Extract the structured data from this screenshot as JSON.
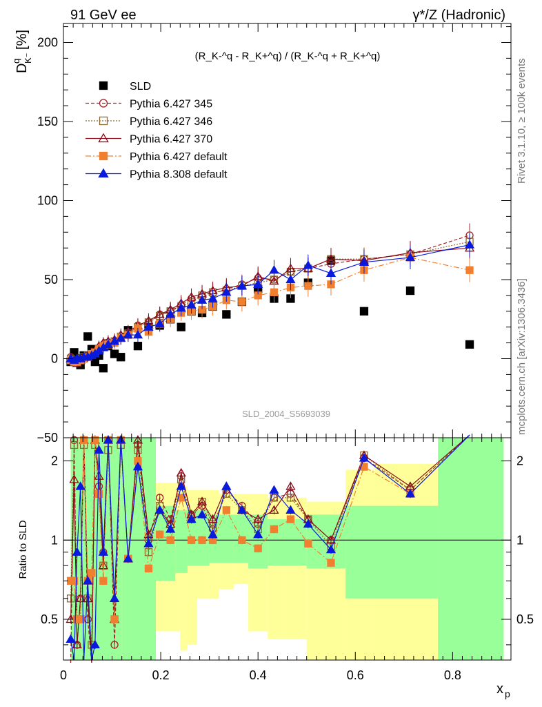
{
  "header": {
    "left": "91 GeV ee",
    "right": "γ*/Z (Hadronic)"
  },
  "side_labels": {
    "rivet": "Rivet 3.1.10, ≥ 100k events",
    "mcplots": "mcplots.cern.ch [arXiv:1306.3436]"
  },
  "chart_data": {
    "type": "scatter",
    "title": "(R^q_{K-} - R^q_{K+}) / (R^q_{K-} + R^q_{K+})",
    "formula": "(R_K-^q - R_K+^q) / (R_K-^q + R_K+^q)",
    "ylabel": "D^q_{K-} [%]",
    "ylabel_main": "D",
    "ylabel_sup": "q",
    "ylabel_sub": "K⁻",
    "ylabel_unit": "[%]",
    "xlabel": "x_p",
    "xlabel_main": "x",
    "xlabel_sub": "p",
    "ratio_ylabel": "Ratio to SLD",
    "watermark": "SLD_2004_S5693039",
    "xlim": [
      0,
      0.92
    ],
    "ylim": [
      -50,
      212
    ],
    "ratio_ylim": [
      0.35,
      2.45
    ],
    "xticks": [
      "0",
      "0.2",
      "0.4",
      "0.6",
      "0.8"
    ],
    "yticks": [
      "−50",
      "0",
      "50",
      "100",
      "150",
      "200"
    ],
    "ratio_yticks": [
      "0.5",
      "1",
      "2"
    ],
    "legend_position": "top-left",
    "x": [
      0.015,
      0.022,
      0.028,
      0.035,
      0.042,
      0.05,
      0.058,
      0.065,
      0.073,
      0.082,
      0.092,
      0.105,
      0.118,
      0.133,
      0.153,
      0.175,
      0.198,
      0.22,
      0.242,
      0.263,
      0.285,
      0.307,
      0.335,
      0.367,
      0.4,
      0.433,
      0.467,
      0.503,
      0.55,
      0.618,
      0.713,
      0.835
    ],
    "series": [
      {
        "name": "SLD",
        "marker": "square",
        "color": "#000000",
        "values": [
          -2,
          4,
          0,
          -4,
          2,
          14,
          6,
          -2,
          2,
          -6,
          8,
          3,
          1,
          18,
          8,
          20,
          21,
          25,
          20,
          30,
          29,
          33,
          28,
          36,
          44,
          38,
          38,
          48,
          62,
          30,
          43,
          9
        ]
      },
      {
        "name": "Pythia 6.427 345",
        "marker": "open-circle",
        "color": "#a0202a",
        "dash": "5,3",
        "values": [
          1,
          -2,
          -3,
          -1,
          0,
          1,
          3,
          4,
          7,
          9,
          10,
          11,
          13,
          16,
          21,
          23,
          28,
          30,
          34,
          38,
          39,
          41,
          44,
          47,
          51,
          50,
          55,
          57,
          60,
          63,
          66,
          78
        ]
      },
      {
        "name": "Pythia 6.427 346",
        "marker": "open-square",
        "color": "#8b6a2b",
        "dash": "2,2",
        "values": [
          0,
          -1,
          -2,
          0,
          1,
          2,
          3,
          4,
          6,
          8,
          10,
          11,
          14,
          16,
          20,
          23,
          27,
          30,
          33,
          36,
          40,
          42,
          43,
          46,
          48,
          50,
          55,
          57,
          63,
          63,
          66,
          74
        ]
      },
      {
        "name": "Pythia 6.427 370",
        "marker": "open-triangle",
        "color": "#8b0a1a",
        "dash": "",
        "values": [
          0,
          -2,
          -3,
          -1,
          1,
          2,
          4,
          5,
          8,
          10,
          11,
          12,
          15,
          17,
          21,
          24,
          28,
          31,
          35,
          39,
          41,
          43,
          45,
          46,
          52,
          49,
          57,
          57,
          63,
          62,
          67,
          70
        ]
      },
      {
        "name": "Pythia 6.427 default",
        "marker": "filled-square",
        "color": "#f08030",
        "dash": "8,3,2,3",
        "values": [
          -1,
          -2,
          -2,
          -1,
          0,
          1,
          3,
          4,
          6,
          8,
          9,
          10,
          13,
          15,
          19,
          17,
          22,
          25,
          29,
          30,
          31,
          33,
          37,
          36,
          40,
          42,
          45,
          46,
          47,
          56,
          64,
          56
        ]
      },
      {
        "name": "Pythia 8.308 default",
        "marker": "filled-triangle",
        "color": "#0a1adc",
        "dash": "",
        "values": [
          0,
          -1,
          0,
          0,
          1,
          1,
          2,
          3,
          5,
          7,
          9,
          11,
          13,
          15,
          15,
          20,
          22,
          28,
          32,
          34,
          37,
          38,
          42,
          46,
          47,
          56,
          50,
          59,
          54,
          61,
          64,
          72
        ]
      }
    ],
    "ratio": {
      "x": [
        0.015,
        0.022,
        0.028,
        0.035,
        0.042,
        0.05,
        0.058,
        0.065,
        0.073,
        0.082,
        0.092,
        0.105,
        0.118,
        0.133,
        0.153,
        0.175,
        0.198,
        0.22,
        0.242,
        0.263,
        0.285,
        0.307,
        0.335,
        0.367,
        0.4,
        0.433,
        0.467,
        0.503,
        0.55,
        0.618,
        0.713,
        0.835
      ],
      "series": [
        {
          "name": "Pythia 6.427 345",
          "values": [
            0.3,
            2.4,
            0.4,
            0.6,
            2.4,
            0.5,
            0.3,
            2.4,
            1.6,
            0.9,
            2.4,
            0.4,
            2.4,
            0.85,
            2.3,
            1.0,
            1.45,
            1.2,
            1.75,
            1.25,
            1.35,
            1.1,
            1.55,
            1.35,
            1.15,
            1.45,
            1.5,
            1.2,
            1.0,
            2.05,
            1.55,
            2.6
          ]
        },
        {
          "name": "Pythia 6.427 346",
          "values": [
            0.6,
            2.3,
            0.5,
            0.5,
            2.3,
            0.6,
            0.4,
            2.3,
            1.5,
            0.8,
            2.2,
            0.5,
            2.3,
            0.85,
            2.2,
            0.9,
            1.35,
            1.15,
            1.7,
            1.2,
            1.4,
            1.15,
            1.5,
            1.3,
            1.1,
            1.45,
            1.45,
            1.2,
            0.95,
            2.1,
            1.55,
            2.6
          ]
        },
        {
          "name": "Pythia 6.427 370",
          "values": [
            0.5,
            1.7,
            0.4,
            0.6,
            2.4,
            0.6,
            0.3,
            2.4,
            1.75,
            0.8,
            2.4,
            0.5,
            2.4,
            0.85,
            2.4,
            1.05,
            1.3,
            1.15,
            1.8,
            1.25,
            1.4,
            1.2,
            1.6,
            1.3,
            1.2,
            1.3,
            1.6,
            1.2,
            1.0,
            2.1,
            1.6,
            2.6
          ]
        },
        {
          "name": "Pythia 6.427 default",
          "values": [
            0.7,
            0.7,
            0.5,
            0.5,
            2.4,
            0.7,
            0.75,
            2.4,
            1.5,
            0.7,
            2.4,
            0.5,
            2.4,
            0.85,
            2.0,
            0.78,
            1.05,
            1.0,
            1.45,
            1.0,
            1.0,
            1.0,
            1.3,
            1.0,
            0.93,
            1.1,
            1.2,
            0.97,
            0.82,
            1.9,
            1.5,
            2.5
          ]
        },
        {
          "name": "Pythia 8.308 default",
          "values": [
            0.42,
            0.35,
            0.9,
            1.6,
            0.35,
            0.7,
            0.35,
            0.4,
            2.2,
            0.9,
            2.4,
            0.6,
            2.4,
            0.85,
            1.9,
            0.97,
            1.3,
            1.1,
            1.6,
            1.2,
            1.25,
            1.05,
            1.6,
            1.3,
            1.05,
            1.55,
            1.3,
            1.15,
            0.92,
            2.05,
            1.5,
            2.6
          ]
        }
      ],
      "band_yellow": [
        {
          "x0": 0.015,
          "x1": 0.12,
          "lo": 0.35,
          "hi": 2.45
        },
        {
          "x0": 0.12,
          "x1": 0.19,
          "lo": 0.35,
          "hi": 2.45
        },
        {
          "x0": 0.19,
          "x1": 0.24,
          "lo": 0.45,
          "hi": 1.65
        },
        {
          "x0": 0.24,
          "x1": 0.255,
          "lo": 0.38,
          "hi": 1.6
        },
        {
          "x0": 0.255,
          "x1": 0.275,
          "lo": 0.4,
          "hi": 1.55
        },
        {
          "x0": 0.275,
          "x1": 0.3,
          "lo": 0.6,
          "hi": 1.55
        },
        {
          "x0": 0.3,
          "x1": 0.32,
          "lo": 0.6,
          "hi": 1.55
        },
        {
          "x0": 0.32,
          "x1": 0.35,
          "lo": 0.65,
          "hi": 1.5
        },
        {
          "x0": 0.35,
          "x1": 0.38,
          "lo": 0.68,
          "hi": 1.5
        },
        {
          "x0": 0.38,
          "x1": 0.42,
          "lo": 0.45,
          "hi": 1.5
        },
        {
          "x0": 0.42,
          "x1": 0.455,
          "lo": 0.42,
          "hi": 1.45
        },
        {
          "x0": 0.455,
          "x1": 0.5,
          "lo": 0.42,
          "hi": 1.45
        },
        {
          "x0": 0.5,
          "x1": 0.58,
          "lo": 0.35,
          "hi": 1.4
        },
        {
          "x0": 0.58,
          "x1": 0.64,
          "lo": 0.35,
          "hi": 1.85
        },
        {
          "x0": 0.64,
          "x1": 0.77,
          "lo": 0.35,
          "hi": 1.95
        },
        {
          "x0": 0.77,
          "x1": 0.905,
          "lo": 0.35,
          "hi": 2.45
        }
      ],
      "band_green": [
        {
          "x0": 0.015,
          "x1": 0.12,
          "lo": 0.35,
          "hi": 2.45
        },
        {
          "x0": 0.12,
          "x1": 0.19,
          "lo": 0.35,
          "hi": 2.45
        },
        {
          "x0": 0.19,
          "x1": 0.23,
          "lo": 0.7,
          "hi": 1.35
        },
        {
          "x0": 0.23,
          "x1": 0.255,
          "lo": 0.75,
          "hi": 1.3
        },
        {
          "x0": 0.255,
          "x1": 0.275,
          "lo": 0.8,
          "hi": 1.3
        },
        {
          "x0": 0.275,
          "x1": 0.3,
          "lo": 0.8,
          "hi": 1.3
        },
        {
          "x0": 0.3,
          "x1": 0.35,
          "lo": 0.82,
          "hi": 1.25
        },
        {
          "x0": 0.35,
          "x1": 0.38,
          "lo": 0.82,
          "hi": 1.25
        },
        {
          "x0": 0.38,
          "x1": 0.42,
          "lo": 0.78,
          "hi": 1.25
        },
        {
          "x0": 0.42,
          "x1": 0.455,
          "lo": 0.8,
          "hi": 1.2
        },
        {
          "x0": 0.455,
          "x1": 0.5,
          "lo": 0.8,
          "hi": 1.2
        },
        {
          "x0": 0.5,
          "x1": 0.58,
          "lo": 0.78,
          "hi": 1.25
        },
        {
          "x0": 0.58,
          "x1": 0.64,
          "lo": 0.6,
          "hi": 1.35
        },
        {
          "x0": 0.64,
          "x1": 0.77,
          "lo": 0.6,
          "hi": 1.35
        },
        {
          "x0": 0.77,
          "x1": 0.905,
          "lo": 0.35,
          "hi": 2.45
        }
      ]
    }
  },
  "colors": {
    "band_yellow": "#ffff99",
    "band_green": "#99ff99"
  }
}
